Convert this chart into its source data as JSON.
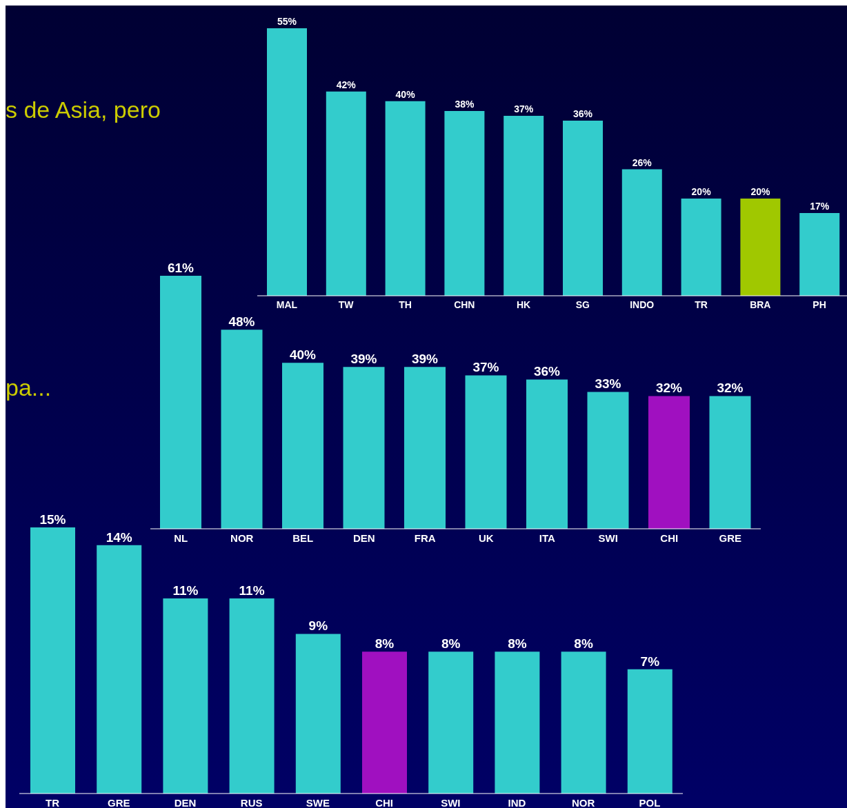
{
  "chart_data": [
    {
      "type": "bar",
      "categories": [
        "MAL",
        "TW",
        "TH",
        "CHN",
        "HK",
        "SG",
        "INDO",
        "TR",
        "BRA",
        "PH"
      ],
      "values": [
        55,
        42,
        40,
        38,
        37,
        36,
        26,
        20,
        20,
        17
      ],
      "colors": [
        "#33cccc",
        "#33cccc",
        "#33cccc",
        "#33cccc",
        "#33cccc",
        "#33cccc",
        "#33cccc",
        "#33cccc",
        "#a0c800",
        "#33cccc"
      ],
      "value_labels": [
        "55%",
        "42%",
        "40%",
        "38%",
        "37%",
        "36%",
        "26%",
        "20%",
        "20%",
        "17%"
      ],
      "annotations": [
        "s de Asia, pero"
      ]
    },
    {
      "type": "bar",
      "categories": [
        "NL",
        "NOR",
        "BEL",
        "DEN",
        "FRA",
        "UK",
        "ITA",
        "SWI",
        "CHI",
        "GRE"
      ],
      "values": [
        61,
        48,
        40,
        39,
        39,
        37,
        36,
        33,
        32,
        32
      ],
      "colors": [
        "#33cccc",
        "#33cccc",
        "#33cccc",
        "#33cccc",
        "#33cccc",
        "#33cccc",
        "#33cccc",
        "#33cccc",
        "#a010c0",
        "#33cccc"
      ],
      "value_labels": [
        "61%",
        "48%",
        "40%",
        "39%",
        "39%",
        "37%",
        "36%",
        "33%",
        "32%",
        "32%"
      ],
      "annotations": [
        "pa..."
      ]
    },
    {
      "type": "bar",
      "categories": [
        "TR",
        "GRE",
        "DEN",
        "RUS",
        "SWE",
        "CHI",
        "SWI",
        "IND",
        "NOR",
        "POL"
      ],
      "values": [
        15,
        14,
        11,
        11,
        9,
        8,
        8,
        8,
        8,
        7
      ],
      "colors": [
        "#33cccc",
        "#33cccc",
        "#33cccc",
        "#33cccc",
        "#33cccc",
        "#a010c0",
        "#33cccc",
        "#33cccc",
        "#33cccc",
        "#33cccc"
      ],
      "value_labels": [
        "15%",
        "14%",
        "11%",
        "11%",
        "9%",
        "8%",
        "8%",
        "8%",
        "8%",
        "7%"
      ]
    }
  ]
}
